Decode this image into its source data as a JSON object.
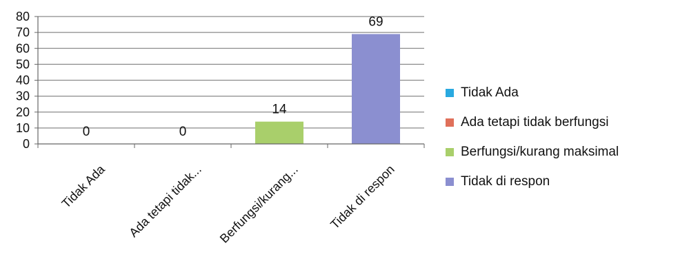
{
  "chart_data": {
    "type": "bar",
    "categories": [
      "Tidak Ada",
      "Ada tetapi tidak...",
      "Berfungsi/kurang...",
      "Tidak di respon"
    ],
    "values": [
      0,
      0,
      14,
      69
    ],
    "data_labels": [
      "0",
      "0",
      "14",
      "69"
    ],
    "ylim": [
      0,
      80
    ],
    "yticks": [
      "0",
      "10",
      "20",
      "30",
      "40",
      "50",
      "60",
      "70",
      "80"
    ],
    "grid": true,
    "legend_position": "right",
    "legend": [
      {
        "name": "Tidak Ada",
        "color": "#29a9e0"
      },
      {
        "name": "Ada tetapi tidak berfungsi",
        "color": "#e0705a"
      },
      {
        "name": "Berfungsi/kurang maksimal",
        "color": "#a9cf6b"
      },
      {
        "name": "Tidak di respon",
        "color": "#8b8fd0"
      }
    ],
    "bar_colors": [
      "#29a9e0",
      "#e0705a",
      "#a9cf6b",
      "#8b8fd0"
    ],
    "title": "",
    "xlabel": "",
    "ylabel": ""
  }
}
